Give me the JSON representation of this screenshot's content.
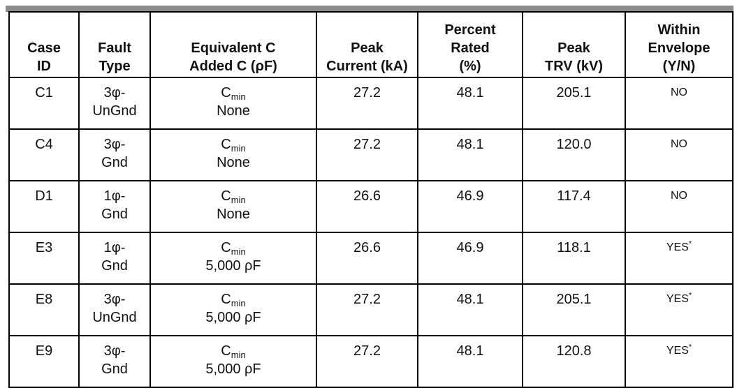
{
  "table": {
    "header": [
      [
        "Case",
        "ID"
      ],
      [
        "Fault",
        "Type"
      ],
      [
        "Equivalent C",
        "Added C (ρF)"
      ],
      [
        "Peak",
        "Current (kA)"
      ],
      [
        "Percent",
        "Rated",
        "(%)"
      ],
      [
        "Peak",
        "TRV (kV)"
      ],
      [
        "Within",
        "Envelope",
        "(Y/N)"
      ]
    ],
    "rows": [
      {
        "case": "C1",
        "fault": [
          "3φ-",
          "UnGnd"
        ],
        "cap": {
          "base": "C",
          "sub": "min",
          "added": "None"
        },
        "current": "27.2",
        "percent": "48.1",
        "trv": "205.1",
        "within": {
          "text": "NO"
        }
      },
      {
        "case": "C4",
        "fault": [
          "3φ-",
          "Gnd"
        ],
        "cap": {
          "base": "C",
          "sub": "min",
          "added": "None"
        },
        "current": "27.2",
        "percent": "48.1",
        "trv": "120.0",
        "within": {
          "text": "NO"
        }
      },
      {
        "case": "D1",
        "fault": [
          "1φ-",
          "Gnd"
        ],
        "cap": {
          "base": "C",
          "sub": "min",
          "added": "None"
        },
        "current": "26.6",
        "percent": "46.9",
        "trv": "117.4",
        "within": {
          "text": "NO"
        }
      },
      {
        "case": "E3",
        "fault": [
          "1φ-",
          "Gnd"
        ],
        "cap": {
          "base": "C",
          "sub": "min",
          "added": "5,000 ρF"
        },
        "current": "26.6",
        "percent": "46.9",
        "trv": "118.1",
        "within": {
          "text": "YES",
          "note": "*"
        }
      },
      {
        "case": "E8",
        "fault": [
          "3φ-",
          "UnGnd"
        ],
        "cap": {
          "base": "C",
          "sub": "min",
          "added": "5,000 ρF"
        },
        "current": "27.2",
        "percent": "48.1",
        "trv": "205.1",
        "within": {
          "text": "YES",
          "note": "*"
        }
      },
      {
        "case": "E9",
        "fault": [
          "3φ-",
          "Gnd"
        ],
        "cap": {
          "base": "C",
          "sub": "min",
          "added": "5,000 ρF"
        },
        "current": "27.2",
        "percent": "48.1",
        "trv": "120.8",
        "within": {
          "text": "YES",
          "note": "*"
        }
      }
    ]
  }
}
